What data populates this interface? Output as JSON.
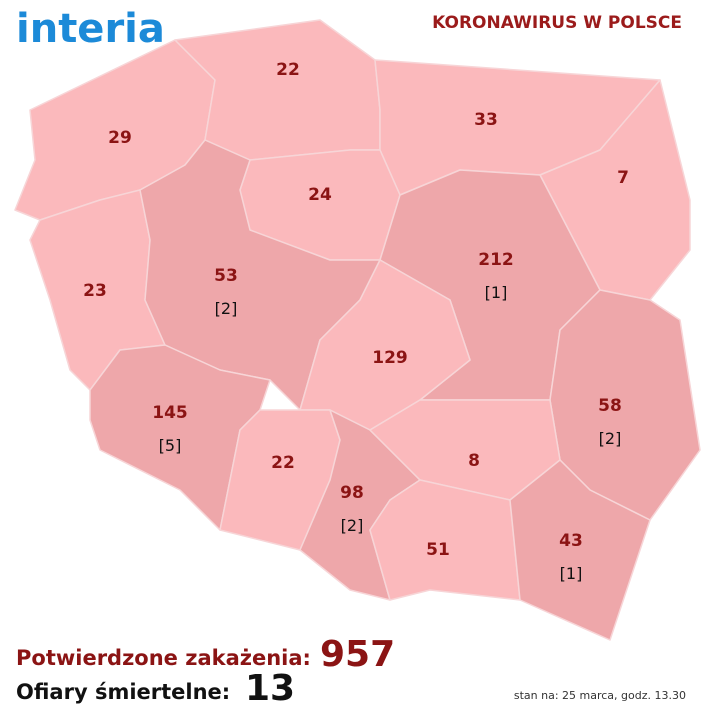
{
  "logo": "interia",
  "title": "KORONAWIRUS W POLSCE",
  "colors": {
    "region": "#fbb9bc",
    "region_with_deaths": "#eea7aa",
    "border": "#f7d5d7"
  },
  "regions": [
    {
      "cases": 29
    },
    {
      "cases": 22
    },
    {
      "cases": 33
    },
    {
      "cases": 7
    },
    {
      "cases": 24
    },
    {
      "cases": 23
    },
    {
      "cases": 53,
      "deaths": "[2]"
    },
    {
      "cases": 212,
      "deaths": "[1]"
    },
    {
      "cases": 129
    },
    {
      "cases": 58,
      "deaths": "[2]"
    },
    {
      "cases": 145,
      "deaths": "[5]"
    },
    {
      "cases": 22
    },
    {
      "cases": 98,
      "deaths": "[2]"
    },
    {
      "cases": 8
    },
    {
      "cases": 51
    },
    {
      "cases": 43,
      "deaths": "[1]"
    }
  ],
  "totals": {
    "confirmed_label": "Potwierdzone zakażenia:",
    "confirmed": 957,
    "deaths_label": "Ofiary śmiertelne:",
    "deaths": 13
  },
  "footer": "stan na: 25 marca, godz. 13.30"
}
